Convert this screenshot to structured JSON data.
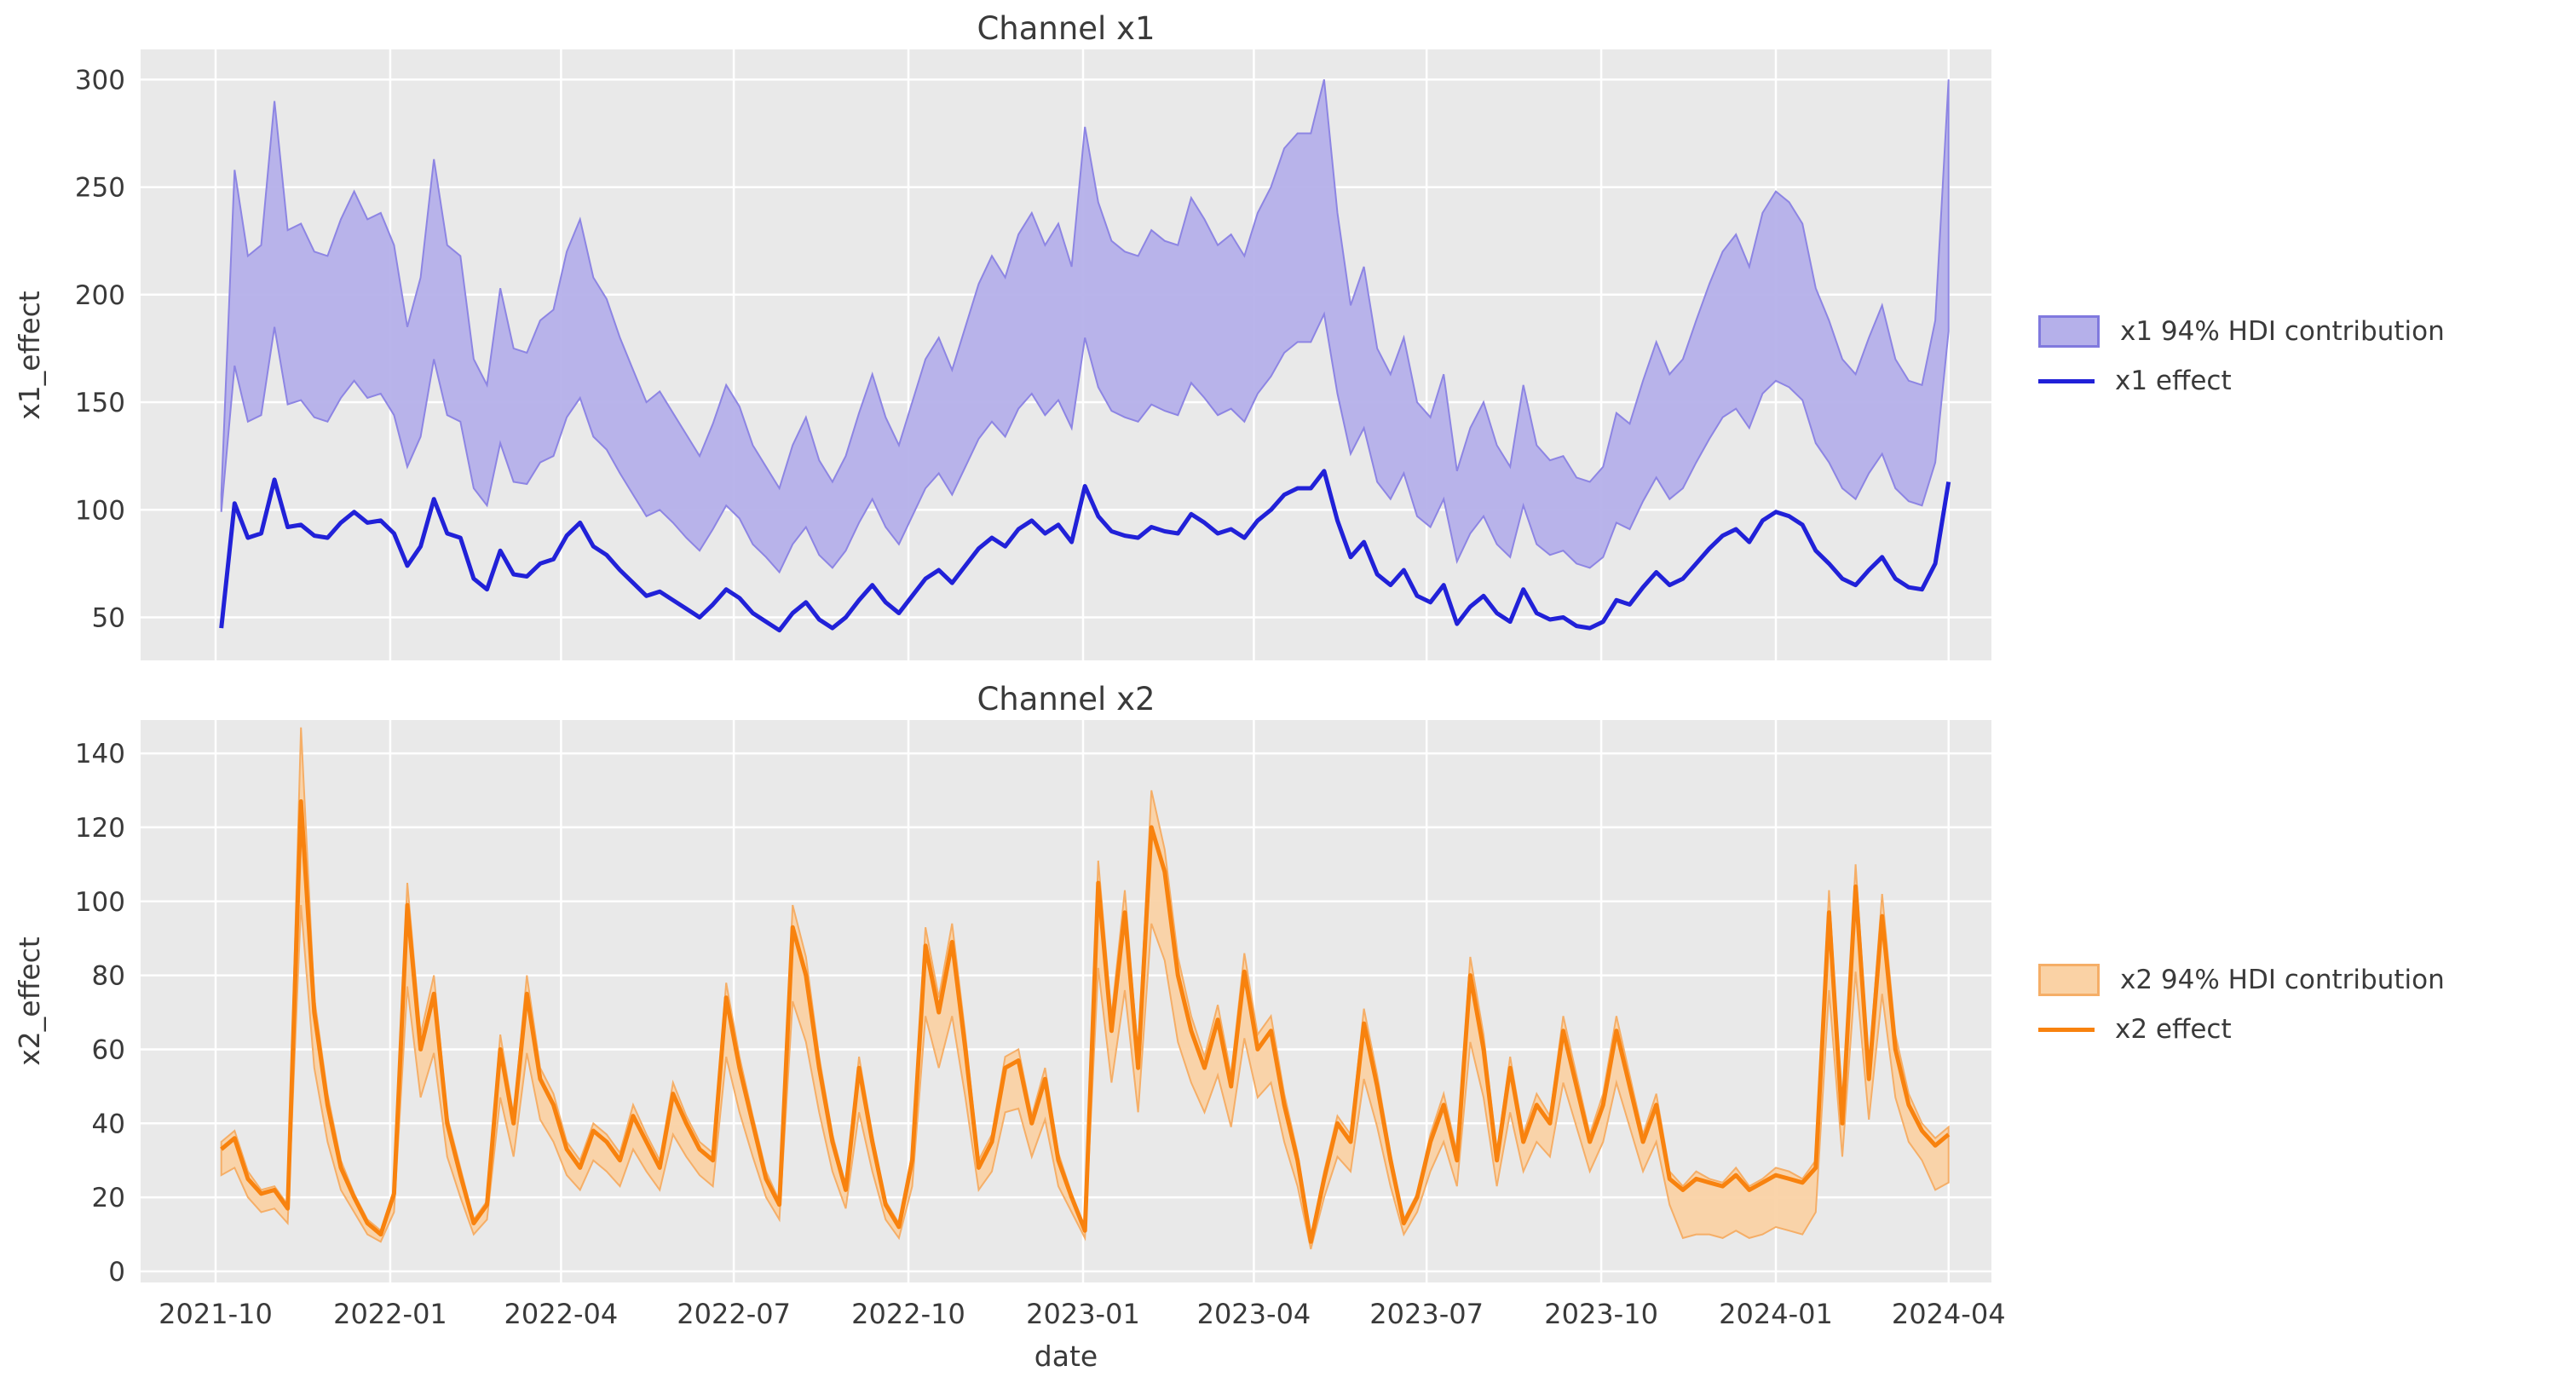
{
  "figure": {
    "background": "#ffffff",
    "axes_background": "#e9e9e9",
    "grid_color": "#ffffff",
    "text_color": "#3a3a3a"
  },
  "x_axis": {
    "label": "date",
    "tick_labels": [
      "2021-10",
      "2022-01",
      "2022-04",
      "2022-07",
      "2022-10",
      "2023-01",
      "2023-04",
      "2023-07",
      "2023-10",
      "2024-01",
      "2024-04"
    ],
    "tick_day_offsets": [
      0,
      92,
      182,
      273,
      365,
      457,
      547,
      638,
      730,
      822,
      913
    ]
  },
  "chart_data": [
    {
      "type": "area",
      "title": "Channel x1",
      "ylabel": "x1_effect",
      "xlabel": "date",
      "yticks": [
        50,
        100,
        150,
        200,
        250,
        300
      ],
      "ylim": [
        30,
        314
      ],
      "grid": true,
      "legend_position": "right",
      "x_start": "2021-10-04",
      "x_step_days": 7,
      "series": [
        {
          "name": "band",
          "label": "x1 94% HDI contribution",
          "fill": "#b5b0ea",
          "edge": "#8d85e3"
        },
        {
          "name": "line",
          "label": "x1 effect",
          "color": "#2121d8"
        }
      ],
      "line": [
        45,
        103,
        87,
        89,
        114,
        92,
        93,
        88,
        87,
        94,
        99,
        94,
        95,
        89,
        74,
        83,
        105,
        89,
        87,
        68,
        63,
        81,
        70,
        69,
        75,
        77,
        88,
        94,
        83,
        79,
        72,
        66,
        60,
        62,
        58,
        54,
        50,
        56,
        63,
        59,
        52,
        48,
        44,
        52,
        57,
        49,
        45,
        50,
        58,
        65,
        57,
        52,
        60,
        68,
        72,
        66,
        74,
        82,
        87,
        83,
        91,
        95,
        89,
        93,
        85,
        111,
        97,
        90,
        88,
        87,
        92,
        90,
        89,
        98,
        94,
        89,
        91,
        87,
        95,
        100,
        107,
        110,
        110,
        118,
        95,
        78,
        85,
        70,
        65,
        72,
        60,
        57,
        65,
        47,
        55,
        60,
        52,
        48,
        63,
        52,
        49,
        50,
        46,
        45,
        48,
        58,
        56,
        64,
        71,
        65,
        68,
        75,
        82,
        88,
        91,
        85,
        95,
        99,
        97,
        93,
        81,
        75,
        68,
        65,
        72,
        78,
        68,
        64,
        63,
        75,
        113
      ],
      "band_low": [
        99,
        167,
        141,
        144,
        185,
        149,
        151,
        143,
        141,
        152,
        160,
        152,
        154,
        144,
        120,
        134,
        170,
        144,
        141,
        110,
        102,
        131,
        113,
        112,
        122,
        125,
        143,
        152,
        134,
        128,
        117,
        107,
        97,
        100,
        94,
        87,
        81,
        91,
        102,
        96,
        84,
        78,
        71,
        84,
        92,
        79,
        73,
        81,
        94,
        105,
        92,
        84,
        97,
        110,
        117,
        107,
        120,
        133,
        141,
        134,
        147,
        154,
        144,
        151,
        138,
        180,
        157,
        146,
        143,
        141,
        149,
        146,
        144,
        159,
        152,
        144,
        147,
        141,
        154,
        162,
        173,
        178,
        178,
        191,
        154,
        126,
        138,
        113,
        105,
        117,
        97,
        92,
        105,
        76,
        89,
        97,
        84,
        78,
        102,
        84,
        79,
        81,
        75,
        73,
        78,
        94,
        91,
        104,
        115,
        105,
        110,
        122,
        133,
        143,
        147,
        138,
        154,
        160,
        157,
        151,
        131,
        122,
        110,
        105,
        117,
        126,
        110,
        104,
        102,
        122,
        183
      ],
      "band_high": [
        107,
        258,
        218,
        223,
        290,
        230,
        233,
        220,
        218,
        235,
        248,
        235,
        238,
        223,
        185,
        208,
        263,
        223,
        218,
        170,
        158,
        203,
        175,
        173,
        188,
        193,
        220,
        235,
        208,
        198,
        180,
        165,
        150,
        155,
        145,
        135,
        125,
        140,
        158,
        148,
        130,
        120,
        110,
        130,
        143,
        123,
        113,
        125,
        145,
        163,
        143,
        130,
        150,
        170,
        180,
        165,
        185,
        205,
        218,
        208,
        228,
        238,
        223,
        233,
        213,
        278,
        243,
        225,
        220,
        218,
        230,
        225,
        223,
        245,
        235,
        223,
        228,
        218,
        238,
        250,
        268,
        275,
        275,
        300,
        238,
        195,
        213,
        175,
        163,
        180,
        150,
        143,
        163,
        118,
        138,
        150,
        130,
        120,
        158,
        130,
        123,
        125,
        115,
        113,
        120,
        145,
        140,
        160,
        178,
        163,
        170,
        188,
        205,
        220,
        228,
        213,
        238,
        248,
        243,
        233,
        203,
        188,
        170,
        163,
        180,
        195,
        170,
        160,
        158,
        188,
        300
      ]
    },
    {
      "type": "area",
      "title": "Channel x2",
      "ylabel": "x2_effect",
      "xlabel": "date",
      "yticks": [
        0,
        20,
        40,
        60,
        80,
        100,
        120,
        140
      ],
      "ylim": [
        -3,
        149
      ],
      "grid": true,
      "legend_position": "right",
      "x_start": "2021-10-04",
      "x_step_days": 7,
      "series": [
        {
          "name": "band",
          "label": "x2 94% HDI contribution",
          "fill": "#fad2a5",
          "edge": "#f5ae67"
        },
        {
          "name": "line",
          "label": "x2 effect",
          "color": "#f8820e"
        }
      ],
      "line": [
        33,
        36,
        25,
        21,
        22,
        17,
        127,
        70,
        45,
        28,
        20,
        13,
        10,
        21,
        99,
        60,
        75,
        40,
        26,
        13,
        18,
        60,
        40,
        75,
        52,
        45,
        33,
        28,
        38,
        35,
        30,
        42,
        35,
        28,
        48,
        40,
        33,
        30,
        74,
        55,
        40,
        25,
        18,
        93,
        80,
        55,
        35,
        22,
        55,
        35,
        18,
        12,
        30,
        88,
        70,
        89,
        60,
        28,
        35,
        55,
        57,
        40,
        52,
        30,
        20,
        11,
        105,
        65,
        97,
        55,
        120,
        108,
        80,
        65,
        55,
        68,
        50,
        81,
        60,
        65,
        45,
        30,
        8,
        25,
        40,
        35,
        67,
        50,
        30,
        13,
        20,
        35,
        45,
        30,
        80,
        60,
        30,
        55,
        35,
        45,
        40,
        65,
        50,
        35,
        45,
        65,
        50,
        35,
        45,
        25,
        22,
        25,
        24,
        23,
        26,
        22,
        24,
        26,
        25,
        24,
        28,
        97,
        40,
        104,
        52,
        96,
        60,
        45,
        38,
        34,
        37
      ],
      "band_low": [
        26,
        28,
        20,
        16,
        17,
        13,
        99,
        55,
        35,
        22,
        16,
        10,
        8,
        16,
        77,
        47,
        59,
        31,
        20,
        10,
        14,
        47,
        31,
        59,
        41,
        35,
        26,
        22,
        30,
        27,
        23,
        33,
        27,
        22,
        37,
        31,
        26,
        23,
        58,
        43,
        31,
        20,
        14,
        73,
        62,
        43,
        27,
        17,
        43,
        27,
        14,
        9,
        23,
        69,
        55,
        69,
        47,
        22,
        27,
        43,
        44,
        31,
        41,
        23,
        16,
        9,
        82,
        51,
        76,
        43,
        94,
        84,
        62,
        51,
        43,
        53,
        39,
        63,
        47,
        51,
        35,
        23,
        6,
        20,
        31,
        27,
        52,
        39,
        23,
        10,
        16,
        27,
        35,
        23,
        62,
        47,
        23,
        43,
        27,
        35,
        31,
        51,
        39,
        27,
        35,
        51,
        39,
        27,
        35,
        18,
        9,
        10,
        10,
        9,
        11,
        9,
        10,
        12,
        11,
        10,
        16,
        76,
        31,
        81,
        41,
        75,
        47,
        35,
        30,
        22,
        24
      ],
      "band_high": [
        35,
        38,
        27,
        22,
        23,
        18,
        147,
        74,
        48,
        30,
        21,
        14,
        11,
        22,
        105,
        64,
        80,
        42,
        28,
        14,
        19,
        64,
        42,
        80,
        55,
        48,
        35,
        30,
        40,
        37,
        32,
        45,
        37,
        30,
        51,
        42,
        35,
        32,
        78,
        58,
        42,
        27,
        19,
        99,
        85,
        58,
        37,
        23,
        58,
        37,
        19,
        13,
        32,
        93,
        74,
        94,
        64,
        30,
        37,
        58,
        60,
        42,
        55,
        32,
        21,
        12,
        111,
        69,
        103,
        58,
        130,
        114,
        85,
        69,
        58,
        72,
        53,
        86,
        64,
        69,
        48,
        32,
        9,
        27,
        42,
        37,
        71,
        53,
        32,
        14,
        21,
        37,
        48,
        32,
        85,
        64,
        32,
        58,
        37,
        48,
        42,
        69,
        53,
        37,
        48,
        69,
        53,
        37,
        48,
        27,
        23,
        27,
        25,
        24,
        28,
        23,
        25,
        28,
        27,
        25,
        30,
        103,
        42,
        110,
        55,
        102,
        64,
        48,
        40,
        36,
        39
      ]
    }
  ]
}
